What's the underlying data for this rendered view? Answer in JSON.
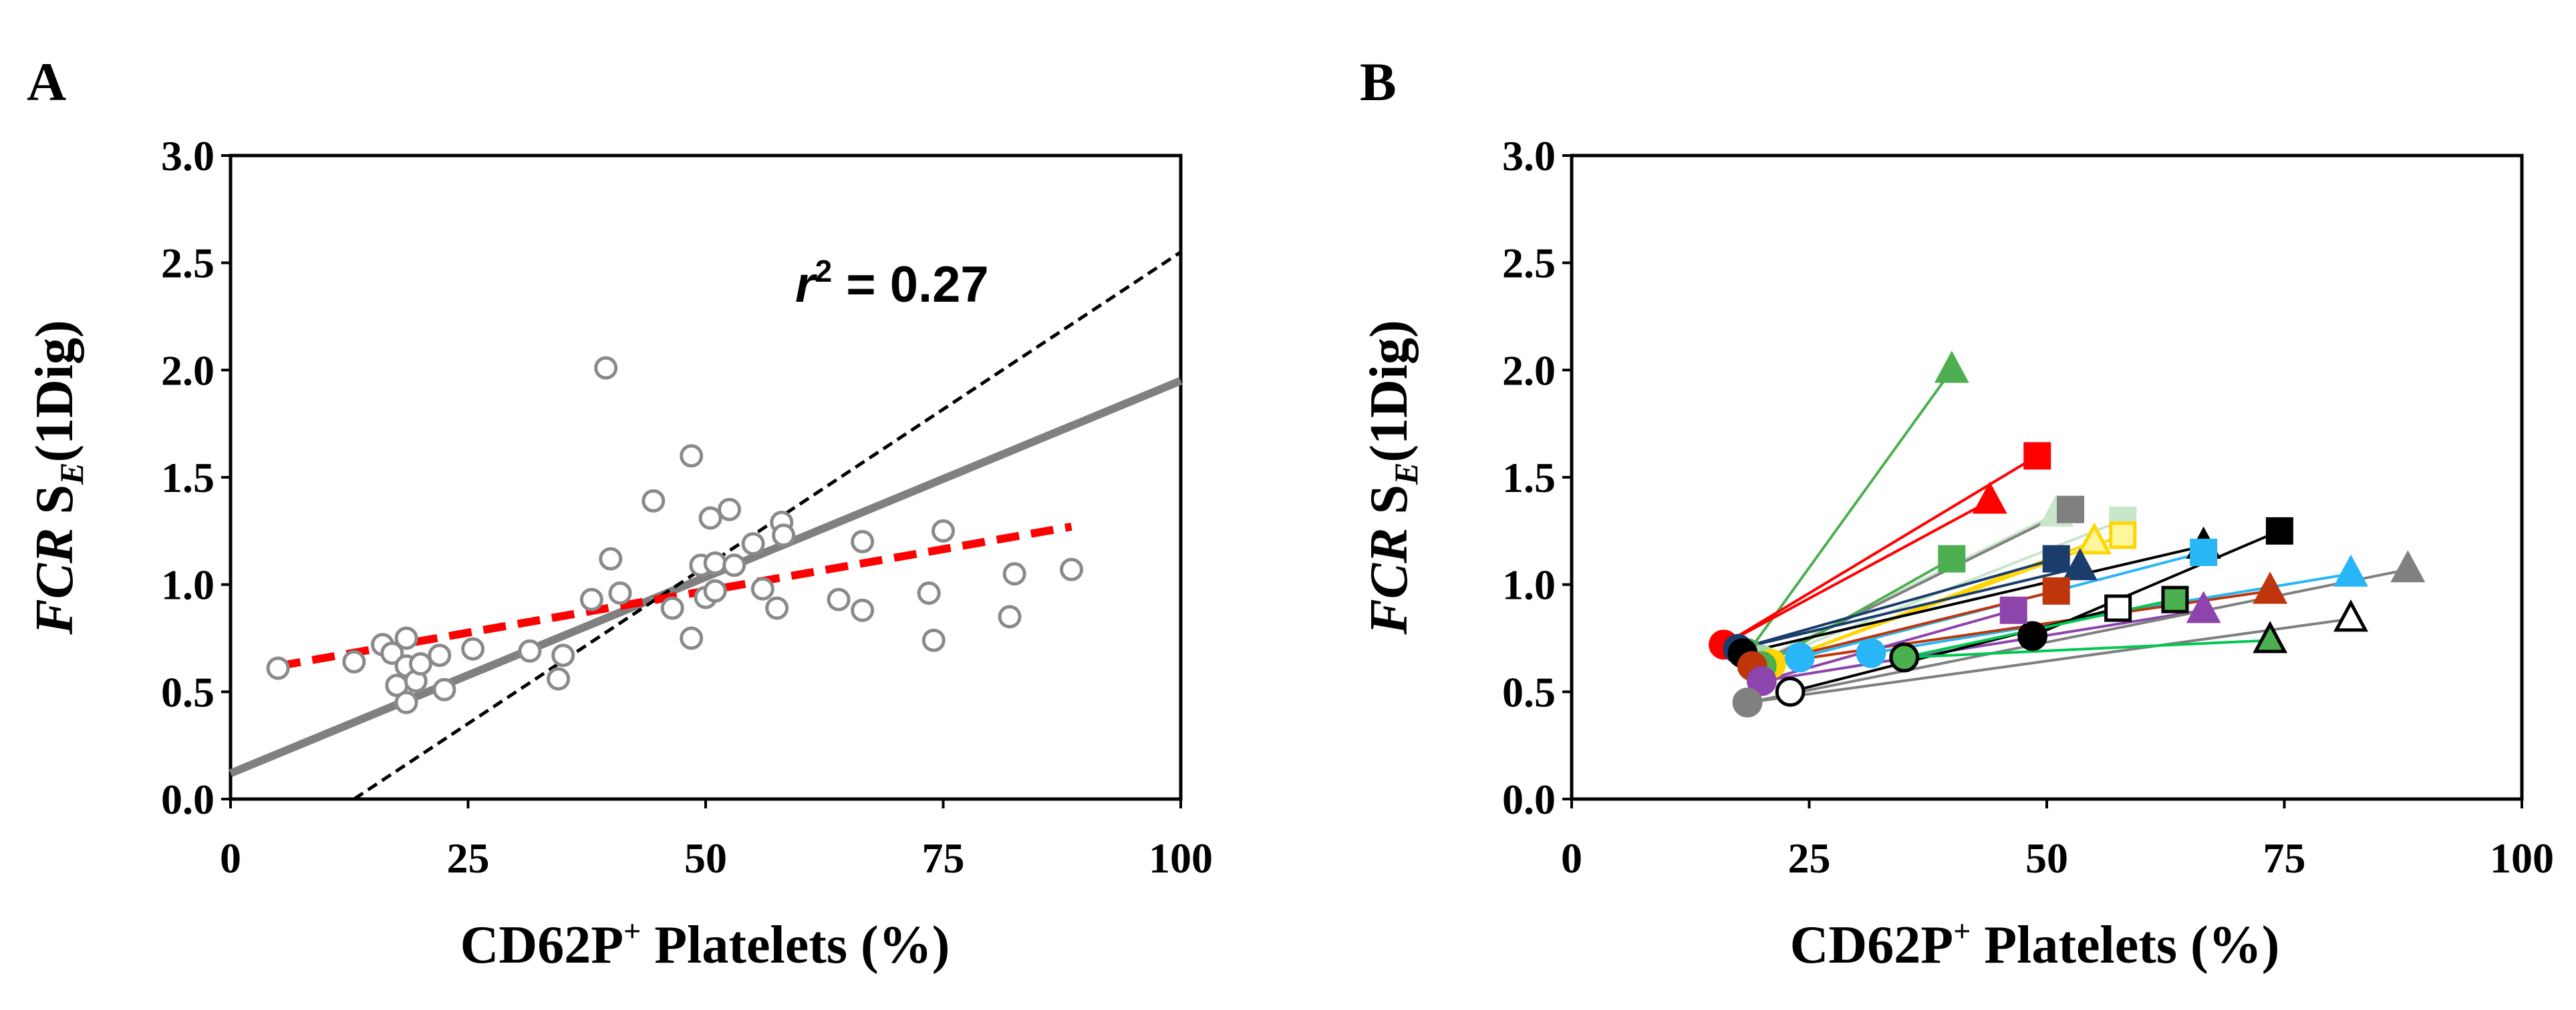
{
  "chart_data": [
    {
      "type": "scatter",
      "panel": "A",
      "xlabel_main": "CD62P",
      "xlabel_sup": "+",
      "xlabel_rest": " Platelets (%)",
      "ylabel_italic": "FCR",
      "ylabel_main": " S",
      "ylabel_sub": "E",
      "ylabel_rest": "(1Dig)",
      "xlim": [
        0,
        100
      ],
      "ylim": [
        0,
        3
      ],
      "xticks": [
        "0",
        "25",
        "50",
        "75",
        "100"
      ],
      "yticks": [
        "0.0",
        "0.5",
        "1.0",
        "1.5",
        "2.0",
        "2.5",
        "3.0"
      ],
      "annotation": {
        "r": "r",
        "sup": "2",
        "rest": " = 0.27"
      },
      "points": [
        [
          5,
          0.61
        ],
        [
          13,
          0.64
        ],
        [
          16,
          0.72
        ],
        [
          17.5,
          0.53
        ],
        [
          17,
          0.68
        ],
        [
          18.5,
          0.75
        ],
        [
          18.5,
          0.62
        ],
        [
          18.5,
          0.45
        ],
        [
          19.5,
          0.55
        ],
        [
          20,
          0.63
        ],
        [
          22,
          0.67
        ],
        [
          22.5,
          0.51
        ],
        [
          25.5,
          0.7
        ],
        [
          31.5,
          0.69
        ],
        [
          34.5,
          0.56
        ],
        [
          35,
          0.67
        ],
        [
          38,
          0.93
        ],
        [
          39.5,
          2.01
        ],
        [
          40,
          1.12
        ],
        [
          41,
          0.96
        ],
        [
          44.5,
          1.39
        ],
        [
          46.5,
          0.89
        ],
        [
          48.5,
          1.6
        ],
        [
          48.5,
          0.75
        ],
        [
          49.5,
          1.09
        ],
        [
          50,
          0.94
        ],
        [
          50.5,
          1.31
        ],
        [
          51,
          1.1
        ],
        [
          51,
          0.97
        ],
        [
          52.5,
          1.35
        ],
        [
          53,
          1.09
        ],
        [
          55,
          1.19
        ],
        [
          56,
          0.98
        ],
        [
          57.5,
          0.89
        ],
        [
          58,
          1.29
        ],
        [
          58.2,
          1.23
        ],
        [
          64,
          0.93
        ],
        [
          66.5,
          1.2
        ],
        [
          66.5,
          0.88
        ],
        [
          73.5,
          0.96
        ],
        [
          74,
          0.74
        ],
        [
          75,
          1.25
        ],
        [
          82,
          0.85
        ],
        [
          82.5,
          1.05
        ],
        [
          88.5,
          1.07
        ]
      ],
      "lines": [
        {
          "name": "regression",
          "color": "#808080",
          "style": "solid",
          "x": [
            0,
            100
          ],
          "y": [
            0.12,
            1.95
          ]
        },
        {
          "name": "identity",
          "color": "#000000",
          "style": "dotted",
          "x": [
            13,
            100
          ],
          "y": [
            0,
            2.55
          ]
        },
        {
          "name": "trend",
          "color": "#ff0000",
          "style": "dashed",
          "x": [
            5,
            88.5
          ],
          "y": [
            0.62,
            1.27
          ]
        }
      ]
    },
    {
      "type": "line",
      "panel": "B",
      "xlabel_main": "CD62P",
      "xlabel_sup": "+",
      "xlabel_rest": " Platelets (%)",
      "ylabel_italic": "FCR",
      "ylabel_main": " S",
      "ylabel_sub": "E",
      "ylabel_rest": "(1Dig)",
      "xlim": [
        0,
        100
      ],
      "ylim": [
        0,
        3
      ],
      "xticks": [
        "0",
        "25",
        "50",
        "75",
        "100"
      ],
      "yticks": [
        "0.0",
        "0.5",
        "1.0",
        "1.5",
        "2.0",
        "2.5",
        "3.0"
      ],
      "series": [
        {
          "color": "#4caf50",
          "x": [
            18.5,
            40
          ],
          "y": [
            0.68,
            2.0
          ],
          "m0": "circle",
          "m1": "triangle",
          "f0": "#4caf50",
          "f1": "#4caf50",
          "s0": "#4caf50",
          "s1": "#4caf50"
        },
        {
          "color": "#ff0000",
          "x": [
            16,
            49
          ],
          "y": [
            0.72,
            1.6
          ],
          "m0": "circle",
          "m1": "square",
          "f0": "#ff0000",
          "f1": "#ff0000",
          "s0": "#ff0000",
          "s1": "#ff0000"
        },
        {
          "color": "#ff0000",
          "x": [
            16,
            44
          ],
          "y": [
            0.72,
            1.39
          ],
          "m0": "circle",
          "m1": "triangle",
          "f0": "#ff0000",
          "f1": "#ff0000",
          "s0": "#ff0000",
          "s1": "#ff0000"
        },
        {
          "color": "#c8e6c9",
          "x": [
            20,
            51
          ],
          "y": [
            0.65,
            1.33
          ],
          "m0": "circle",
          "m1": "triangle",
          "f0": "#a5d6a7",
          "f1": "#c8e6c9",
          "s0": "#a5d6a7",
          "s1": "#c8e6c9"
        },
        {
          "color": "#808080",
          "x": [
            19,
            52.5
          ],
          "y": [
            0.62,
            1.35
          ],
          "m0": "circle",
          "m1": "square",
          "f0": "#808080",
          "f1": "#808080",
          "s0": "#808080",
          "s1": "#808080"
        },
        {
          "color": "#c8e6c9",
          "x": [
            19,
            58
          ],
          "y": [
            0.62,
            1.3
          ],
          "m0": "circle",
          "m1": "square",
          "f0": "#c8e6c9",
          "f1": "#c8e6c9",
          "s0": "#c8e6c9",
          "s1": "#c8e6c9"
        },
        {
          "color": "#ffd600",
          "x": [
            21,
            55
          ],
          "y": [
            0.63,
            1.2
          ],
          "m0": "circle",
          "m1": "triangle",
          "f0": "#ffd600",
          "f1": "#fff59d",
          "s0": "#ffd600",
          "s1": "#ffd600"
        },
        {
          "color": "#ffd600",
          "x": [
            21,
            58
          ],
          "y": [
            0.63,
            1.23
          ],
          "m0": "circle",
          "m1": "square",
          "f0": "#ffd600",
          "f1": "#fff59d",
          "s0": "#ffd600",
          "s1": "#ffd600"
        },
        {
          "color": "#4caf50",
          "x": [
            20,
            40
          ],
          "y": [
            0.62,
            1.12
          ],
          "m0": "circle",
          "m1": "square",
          "f0": "#4caf50",
          "f1": "#4caf50",
          "s0": "#4caf50",
          "s1": "#4caf50"
        },
        {
          "color": "#1a3d6b",
          "x": [
            17.5,
            53.5
          ],
          "y": [
            0.7,
            1.08
          ],
          "m0": "circle",
          "m1": "triangle",
          "f0": "#1a3d6b",
          "f1": "#1a3d6b",
          "s0": "#1a3d6b",
          "s1": "#1a3d6b"
        },
        {
          "color": "#1a3d6b",
          "x": [
            17.5,
            51
          ],
          "y": [
            0.7,
            1.12
          ],
          "m0": "circle",
          "m1": "square",
          "f0": "#1a3d6b",
          "f1": "#1a3d6b",
          "s0": "#1a3d6b",
          "s1": "#1a3d6b"
        },
        {
          "color": "#000000",
          "x": [
            18,
            66.5
          ],
          "y": [
            0.68,
            1.18
          ],
          "m0": "circle",
          "m1": "triangle",
          "f0": "#000000",
          "f1": "#000000",
          "s0": "#000000",
          "s1": "#000000"
        },
        {
          "color": "#000000",
          "x": [
            48.5,
            74.5
          ],
          "y": [
            0.76,
            1.25
          ],
          "m0": "circle",
          "m1": "square",
          "f0": "#000000",
          "f1": "#000000",
          "s0": "#000000",
          "s1": "#000000"
        },
        {
          "color": "#29b6f6",
          "x": [
            24,
            66.5
          ],
          "y": [
            0.66,
            1.15
          ],
          "m0": "circle",
          "m1": "square",
          "f0": "#29b6f6",
          "f1": "#29b6f6",
          "s0": "#29b6f6",
          "s1": "#29b6f6"
        },
        {
          "color": "#29b6f6",
          "x": [
            31.5,
            82
          ],
          "y": [
            0.68,
            1.05
          ],
          "m0": "circle",
          "m1": "triangle",
          "f0": "#29b6f6",
          "f1": "#29b6f6",
          "s0": "#29b6f6",
          "s1": "#29b6f6"
        },
        {
          "color": "#bf360c",
          "x": [
            19,
            51
          ],
          "y": [
            0.62,
            0.97
          ],
          "m0": "circle",
          "m1": "square",
          "f0": "#bf360c",
          "f1": "#bf360c",
          "s0": "#bf360c",
          "s1": "#bf360c"
        },
        {
          "color": "#bf360c",
          "x": [
            19,
            73.5
          ],
          "y": [
            0.62,
            0.97
          ],
          "m0": "circle",
          "m1": "triangle",
          "f0": "#bf360c",
          "f1": "#bf360c",
          "s0": "#bf360c",
          "s1": "#bf360c"
        },
        {
          "color": "#8e44ad",
          "x": [
            20,
            46.5
          ],
          "y": [
            0.55,
            0.88
          ],
          "m0": "circle",
          "m1": "square",
          "f0": "#8e44ad",
          "f1": "#8e44ad",
          "s0": "#8e44ad",
          "s1": "#8e44ad"
        },
        {
          "color": "#8e44ad",
          "x": [
            20,
            66.5
          ],
          "y": [
            0.55,
            0.88
          ],
          "m0": "circle",
          "m1": "triangle",
          "f0": "#8e44ad",
          "f1": "#8e44ad",
          "s0": "#8e44ad",
          "s1": "#8e44ad"
        },
        {
          "color": "#808080",
          "x": [
            18.5,
            88
          ],
          "y": [
            0.45,
            1.07
          ],
          "m0": "circle",
          "m1": "triangle",
          "f0": "#808080",
          "f1": "#808080",
          "s0": "#808080",
          "s1": "#808080"
        },
        {
          "color": "#808080",
          "x": [
            18.5,
            82
          ],
          "y": [
            0.45,
            0.84
          ],
          "m0": "circle",
          "m1": "triangle",
          "f0": "#808080",
          "f1": "#ffffff",
          "s0": "#808080",
          "s1": "#000000"
        },
        {
          "color": "#000000",
          "x": [
            23,
            57.5
          ],
          "y": [
            0.5,
            0.89
          ],
          "m0": "circle",
          "m1": "square",
          "f0": "#ffffff",
          "f1": "#ffffff",
          "s0": "#000000",
          "s1": "#000000"
        },
        {
          "color": "#00c853",
          "x": [
            35,
            63.5
          ],
          "y": [
            0.66,
            0.93
          ],
          "m0": "circle",
          "m1": "square",
          "f0": "#4caf50",
          "f1": "#4caf50",
          "s0": "#000000",
          "s1": "#000000"
        },
        {
          "color": "#00c853",
          "x": [
            35,
            73.5
          ],
          "y": [
            0.66,
            0.74
          ],
          "m0": "circle",
          "m1": "triangle",
          "f0": "#4caf50",
          "f1": "#4caf50",
          "s0": "#000000",
          "s1": "#000000"
        }
      ]
    }
  ]
}
